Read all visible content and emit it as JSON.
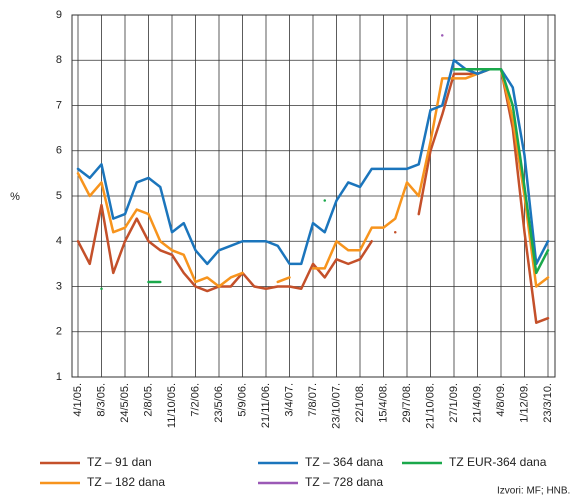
{
  "chart_data": {
    "type": "line",
    "y_label": "%",
    "source": "Izvori: MF; HNB.",
    "categories": [
      "4/1/05.",
      null,
      "8/3/05.",
      null,
      "24/5/05.",
      null,
      "2/8/05.",
      null,
      "11/10/05.",
      null,
      "7/2/06.",
      null,
      "23/5/06.",
      null,
      "5/9/06.",
      null,
      "21/11/06.",
      null,
      "3/4/07.",
      null,
      "7/8/07.",
      null,
      "23/10/07.",
      null,
      "22/1/08.",
      null,
      "15/4/08.",
      null,
      "29/7/08.",
      null,
      "21/10/08.",
      null,
      "27/1/09.",
      null,
      "21/4/09.",
      null,
      "4/8/09.",
      null,
      "1/12/09.",
      null,
      "23/3/10."
    ],
    "ylim": [
      1,
      9
    ],
    "yticks": [
      1,
      2,
      3,
      4,
      5,
      6,
      7,
      8,
      9
    ],
    "grid": true,
    "series": [
      {
        "name": "TZ – 91 dan",
        "color": "#c4502a",
        "values": [
          4.0,
          3.5,
          4.8,
          3.3,
          4.0,
          4.5,
          4.0,
          3.8,
          3.7,
          3.3,
          3.0,
          2.9,
          3.0,
          3.0,
          3.3,
          3.0,
          2.95,
          3.0,
          3.0,
          2.95,
          3.5,
          3.2,
          3.6,
          3.5,
          3.6,
          4.0,
          null,
          4.2,
          null,
          4.6,
          6.0,
          6.8,
          7.7,
          7.7,
          7.7,
          7.8,
          7.8,
          6.5,
          4.2,
          2.2,
          2.3
        ]
      },
      {
        "name": "TZ – 182 dana",
        "color": "#f7941d",
        "values": [
          5.5,
          5.0,
          5.3,
          4.2,
          4.3,
          4.7,
          4.6,
          4.0,
          3.8,
          3.7,
          3.1,
          3.2,
          3.0,
          3.2,
          3.3,
          null,
          null,
          3.1,
          3.2,
          null,
          3.4,
          3.4,
          4.0,
          3.8,
          3.8,
          4.3,
          4.3,
          4.5,
          5.3,
          5.0,
          6.2,
          7.6,
          7.6,
          7.6,
          7.7,
          7.8,
          7.8,
          6.7,
          5.0,
          3.0,
          3.2
        ]
      },
      {
        "name": "TZ – 364 dana",
        "color": "#1b75bc",
        "values": [
          5.6,
          5.4,
          5.7,
          4.5,
          4.6,
          5.3,
          5.4,
          5.2,
          4.2,
          4.4,
          3.8,
          3.5,
          3.8,
          3.9,
          4.0,
          4.0,
          4.0,
          3.9,
          3.5,
          3.5,
          4.4,
          4.2,
          4.9,
          5.3,
          5.2,
          5.6,
          5.6,
          5.6,
          5.6,
          5.7,
          6.9,
          7.0,
          8.0,
          7.8,
          7.7,
          7.8,
          7.8,
          7.4,
          5.9,
          3.5,
          4.0
        ]
      },
      {
        "name": "TZ EUR-364 dana",
        "color": "#1aa84b",
        "values": [
          null,
          null,
          2.95,
          null,
          null,
          null,
          3.1,
          3.1,
          null,
          null,
          null,
          null,
          null,
          null,
          null,
          null,
          null,
          null,
          null,
          null,
          null,
          4.9,
          null,
          null,
          null,
          null,
          null,
          null,
          null,
          null,
          null,
          null,
          7.8,
          7.8,
          7.8,
          7.8,
          7.8,
          7.0,
          5.2,
          3.3,
          3.8
        ]
      },
      {
        "name": "TZ – 728 dana",
        "color": "#9b59b6",
        "values": [
          null,
          null,
          null,
          null,
          null,
          null,
          null,
          null,
          null,
          null,
          null,
          null,
          null,
          null,
          null,
          null,
          null,
          null,
          null,
          null,
          null,
          null,
          null,
          null,
          null,
          null,
          null,
          null,
          null,
          null,
          null,
          8.55,
          null,
          null,
          null,
          null,
          null,
          null,
          null,
          null,
          null
        ]
      }
    ]
  }
}
